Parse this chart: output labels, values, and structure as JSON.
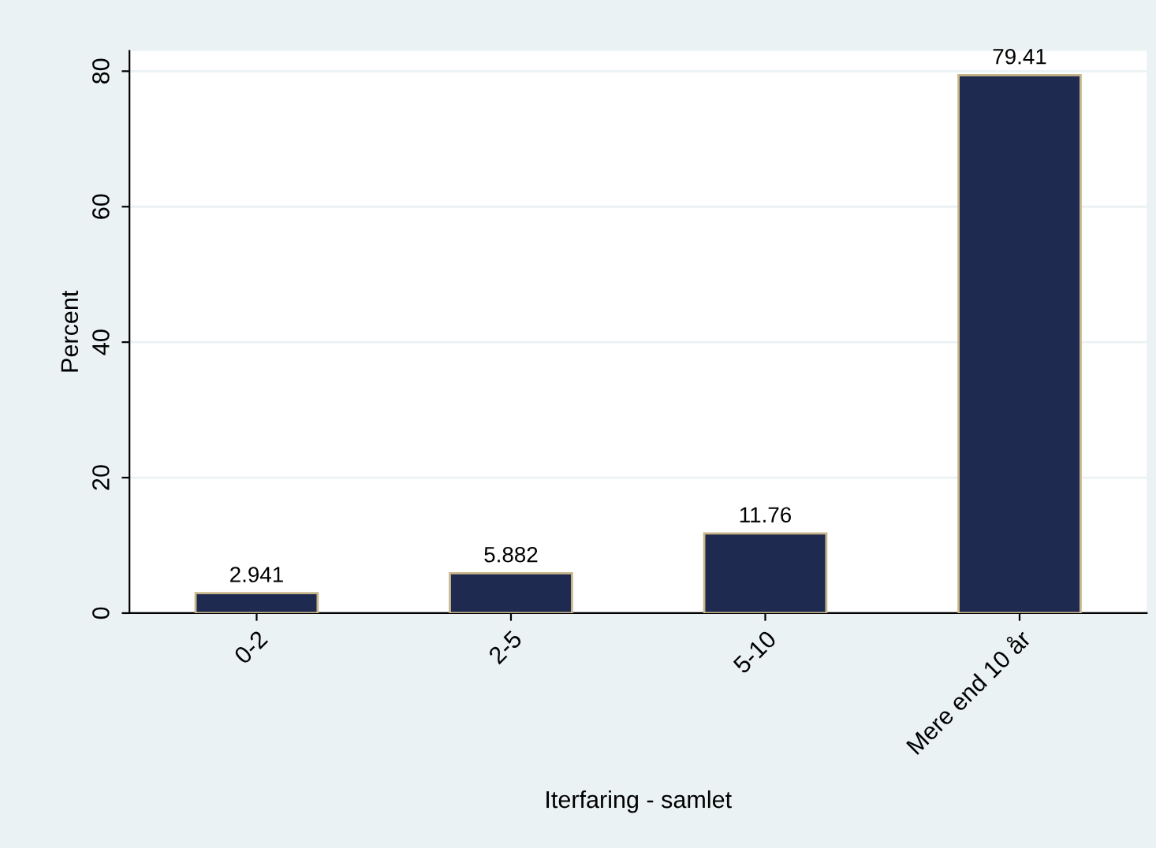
{
  "chart_data": {
    "type": "bar",
    "xlabel": "Iterfaring - samlet",
    "ylabel": "Percent",
    "categories": [
      "0-2",
      "2-5",
      "5-10",
      "Mere end 10 år"
    ],
    "values": [
      2.941,
      5.882,
      11.76,
      79.41
    ],
    "color": "#1f2a50",
    "ylim": [
      0,
      83
    ],
    "yticks": [
      0,
      20,
      40,
      60,
      80
    ],
    "grid": "y",
    "data_labels": true
  }
}
